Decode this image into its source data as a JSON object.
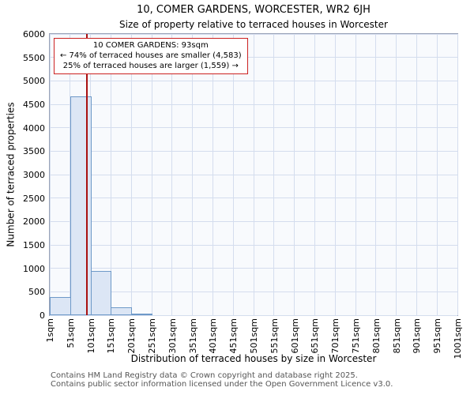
{
  "chart_data": {
    "type": "bar",
    "title": "10, COMER GARDENS, WORCESTER, WR2 6JH",
    "subtitle": "Size of property relative to terraced houses in Worcester",
    "xlabel": "Distribution of terraced houses by size in Worcester",
    "ylabel": "Number of terraced properties",
    "xlim": [
      1,
      1001
    ],
    "ylim": [
      0,
      6000
    ],
    "y_tick_step": 500,
    "y_tick_labels": [
      "0",
      "500",
      "1000",
      "1500",
      "2000",
      "2500",
      "3000",
      "3500",
      "4000",
      "4500",
      "5000",
      "5500",
      "6000"
    ],
    "x_tick_labels": [
      "1sqm",
      "51sqm",
      "101sqm",
      "151sqm",
      "201sqm",
      "251sqm",
      "301sqm",
      "351sqm",
      "401sqm",
      "451sqm",
      "501sqm",
      "551sqm",
      "601sqm",
      "651sqm",
      "701sqm",
      "751sqm",
      "801sqm",
      "851sqm",
      "901sqm",
      "951sqm",
      "1001sqm"
    ],
    "bin_start": 1,
    "bin_width": 50,
    "values": [
      380,
      4670,
      950,
      170,
      30,
      0,
      0,
      0,
      0,
      0,
      0,
      0,
      0,
      0,
      0,
      0,
      0,
      0,
      0,
      0
    ],
    "grid": true,
    "plot_bg": "#f8fafd",
    "grid_color": "#d4ddee",
    "bar_fill": "#dce6f5",
    "bar_stroke": "#6e99c8",
    "marker": {
      "value_sqm": 93,
      "line_color": "#aa1111"
    },
    "annotation": {
      "line1": "10 COMER GARDENS: 93sqm",
      "line2": "← 74% of terraced houses are smaller (4,583)",
      "line3": "25% of terraced houses are larger (1,559) →",
      "border_color": "#cc2222"
    }
  },
  "footer": {
    "line1": "Contains HM Land Registry data © Crown copyright and database right 2025.",
    "line2": "Contains public sector information licensed under the Open Government Licence v3.0."
  }
}
